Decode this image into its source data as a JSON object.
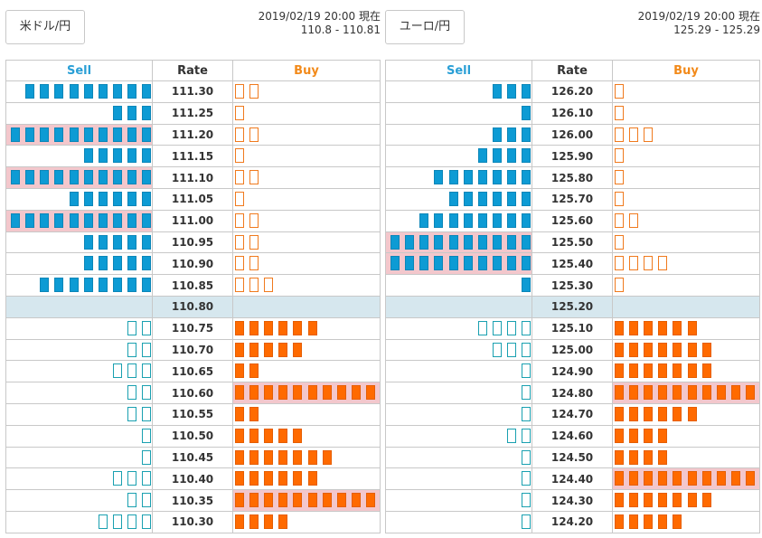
{
  "panels": [
    {
      "id": "usd",
      "pair_label": "米ドル/円",
      "timestamp": "2019/02/19 20:00 現在",
      "quote": "110.8 - 110.81",
      "headers": {
        "sell": "Sell",
        "rate": "Rate",
        "buy": "Buy"
      },
      "current_rate": "110.80",
      "rows": [
        {
          "rate": "111.30",
          "sell": 9,
          "sell_filled": true,
          "buy": 2,
          "buy_filled": false,
          "sell_hl": false,
          "buy_hl": false
        },
        {
          "rate": "111.25",
          "sell": 3,
          "sell_filled": true,
          "buy": 1,
          "buy_filled": false,
          "sell_hl": false,
          "buy_hl": false
        },
        {
          "rate": "111.20",
          "sell": 10,
          "sell_filled": true,
          "buy": 2,
          "buy_filled": false,
          "sell_hl": true,
          "buy_hl": false
        },
        {
          "rate": "111.15",
          "sell": 5,
          "sell_filled": true,
          "buy": 1,
          "buy_filled": false,
          "sell_hl": false,
          "buy_hl": false
        },
        {
          "rate": "111.10",
          "sell": 10,
          "sell_filled": true,
          "buy": 2,
          "buy_filled": false,
          "sell_hl": true,
          "buy_hl": false
        },
        {
          "rate": "111.05",
          "sell": 6,
          "sell_filled": true,
          "buy": 1,
          "buy_filled": false,
          "sell_hl": false,
          "buy_hl": false
        },
        {
          "rate": "111.00",
          "sell": 10,
          "sell_filled": true,
          "buy": 2,
          "buy_filled": false,
          "sell_hl": true,
          "buy_hl": false
        },
        {
          "rate": "110.95",
          "sell": 5,
          "sell_filled": true,
          "buy": 2,
          "buy_filled": false,
          "sell_hl": false,
          "buy_hl": false
        },
        {
          "rate": "110.90",
          "sell": 5,
          "sell_filled": true,
          "buy": 2,
          "buy_filled": false,
          "sell_hl": false,
          "buy_hl": false
        },
        {
          "rate": "110.85",
          "sell": 8,
          "sell_filled": true,
          "buy": 3,
          "buy_filled": false,
          "sell_hl": false,
          "buy_hl": false
        },
        {
          "rate": "110.80",
          "sell": 0,
          "sell_filled": true,
          "buy": 0,
          "buy_filled": true,
          "sell_hl": false,
          "buy_hl": false,
          "current": true
        },
        {
          "rate": "110.75",
          "sell": 2,
          "sell_filled": false,
          "buy": 6,
          "buy_filled": true,
          "sell_hl": false,
          "buy_hl": false
        },
        {
          "rate": "110.70",
          "sell": 2,
          "sell_filled": false,
          "buy": 5,
          "buy_filled": true,
          "sell_hl": false,
          "buy_hl": false
        },
        {
          "rate": "110.65",
          "sell": 3,
          "sell_filled": false,
          "buy": 2,
          "buy_filled": true,
          "sell_hl": false,
          "buy_hl": false
        },
        {
          "rate": "110.60",
          "sell": 2,
          "sell_filled": false,
          "buy": 10,
          "buy_filled": true,
          "sell_hl": false,
          "buy_hl": true
        },
        {
          "rate": "110.55",
          "sell": 2,
          "sell_filled": false,
          "buy": 2,
          "buy_filled": true,
          "sell_hl": false,
          "buy_hl": false
        },
        {
          "rate": "110.50",
          "sell": 1,
          "sell_filled": false,
          "buy": 5,
          "buy_filled": true,
          "sell_hl": false,
          "buy_hl": false
        },
        {
          "rate": "110.45",
          "sell": 1,
          "sell_filled": false,
          "buy": 7,
          "buy_filled": true,
          "sell_hl": false,
          "buy_hl": false
        },
        {
          "rate": "110.40",
          "sell": 3,
          "sell_filled": false,
          "buy": 6,
          "buy_filled": true,
          "sell_hl": false,
          "buy_hl": false
        },
        {
          "rate": "110.35",
          "sell": 2,
          "sell_filled": false,
          "buy": 10,
          "buy_filled": true,
          "sell_hl": false,
          "buy_hl": true
        },
        {
          "rate": "110.30",
          "sell": 4,
          "sell_filled": false,
          "buy": 4,
          "buy_filled": true,
          "sell_hl": false,
          "buy_hl": false
        }
      ]
    },
    {
      "id": "eur",
      "pair_label": "ユーロ/円",
      "timestamp": "2019/02/19 20:00 現在",
      "quote": "125.29 - 125.29",
      "headers": {
        "sell": "Sell",
        "rate": "Rate",
        "buy": "Buy"
      },
      "current_rate": "125.20",
      "rows": [
        {
          "rate": "126.20",
          "sell": 3,
          "sell_filled": true,
          "buy": 1,
          "buy_filled": false,
          "sell_hl": false,
          "buy_hl": false
        },
        {
          "rate": "126.10",
          "sell": 1,
          "sell_filled": true,
          "buy": 1,
          "buy_filled": false,
          "sell_hl": false,
          "buy_hl": false
        },
        {
          "rate": "126.00",
          "sell": 3,
          "sell_filled": true,
          "buy": 3,
          "buy_filled": false,
          "sell_hl": false,
          "buy_hl": false
        },
        {
          "rate": "125.90",
          "sell": 4,
          "sell_filled": true,
          "buy": 1,
          "buy_filled": false,
          "sell_hl": false,
          "buy_hl": false
        },
        {
          "rate": "125.80",
          "sell": 7,
          "sell_filled": true,
          "buy": 1,
          "buy_filled": false,
          "sell_hl": false,
          "buy_hl": false
        },
        {
          "rate": "125.70",
          "sell": 6,
          "sell_filled": true,
          "buy": 1,
          "buy_filled": false,
          "sell_hl": false,
          "buy_hl": false
        },
        {
          "rate": "125.60",
          "sell": 8,
          "sell_filled": true,
          "buy": 2,
          "buy_filled": false,
          "sell_hl": false,
          "buy_hl": false
        },
        {
          "rate": "125.50",
          "sell": 10,
          "sell_filled": true,
          "buy": 1,
          "buy_filled": false,
          "sell_hl": true,
          "buy_hl": false
        },
        {
          "rate": "125.40",
          "sell": 10,
          "sell_filled": true,
          "buy": 4,
          "buy_filled": false,
          "sell_hl": true,
          "buy_hl": false
        },
        {
          "rate": "125.30",
          "sell": 1,
          "sell_filled": true,
          "buy": 1,
          "buy_filled": false,
          "sell_hl": false,
          "buy_hl": false
        },
        {
          "rate": "125.20",
          "sell": 0,
          "sell_filled": true,
          "buy": 0,
          "buy_filled": true,
          "sell_hl": false,
          "buy_hl": false,
          "current": true
        },
        {
          "rate": "125.10",
          "sell": 4,
          "sell_filled": false,
          "buy": 6,
          "buy_filled": true,
          "sell_hl": false,
          "buy_hl": false
        },
        {
          "rate": "125.00",
          "sell": 3,
          "sell_filled": false,
          "buy": 7,
          "buy_filled": true,
          "sell_hl": false,
          "buy_hl": false
        },
        {
          "rate": "124.90",
          "sell": 1,
          "sell_filled": false,
          "buy": 7,
          "buy_filled": true,
          "sell_hl": false,
          "buy_hl": false
        },
        {
          "rate": "124.80",
          "sell": 1,
          "sell_filled": false,
          "buy": 10,
          "buy_filled": true,
          "sell_hl": false,
          "buy_hl": true
        },
        {
          "rate": "124.70",
          "sell": 1,
          "sell_filled": false,
          "buy": 6,
          "buy_filled": true,
          "sell_hl": false,
          "buy_hl": false
        },
        {
          "rate": "124.60",
          "sell": 2,
          "sell_filled": false,
          "buy": 4,
          "buy_filled": true,
          "sell_hl": false,
          "buy_hl": false
        },
        {
          "rate": "124.50",
          "sell": 1,
          "sell_filled": false,
          "buy": 4,
          "buy_filled": true,
          "sell_hl": false,
          "buy_hl": false
        },
        {
          "rate": "124.40",
          "sell": 1,
          "sell_filled": false,
          "buy": 10,
          "buy_filled": true,
          "sell_hl": false,
          "buy_hl": true
        },
        {
          "rate": "124.30",
          "sell": 1,
          "sell_filled": false,
          "buy": 7,
          "buy_filled": true,
          "sell_hl": false,
          "buy_hl": false
        },
        {
          "rate": "124.20",
          "sell": 1,
          "sell_filled": false,
          "buy": 5,
          "buy_filled": true,
          "sell_hl": false,
          "buy_hl": false
        }
      ]
    }
  ],
  "colors": {
    "sell_filled": "#0d9bd4",
    "sell_outline": "#19a0b0",
    "buy_filled": "#ff6a00",
    "buy_outline": "#f07a1e",
    "highlight": "#f3c7cc",
    "current_row": "#d6e7ee"
  }
}
